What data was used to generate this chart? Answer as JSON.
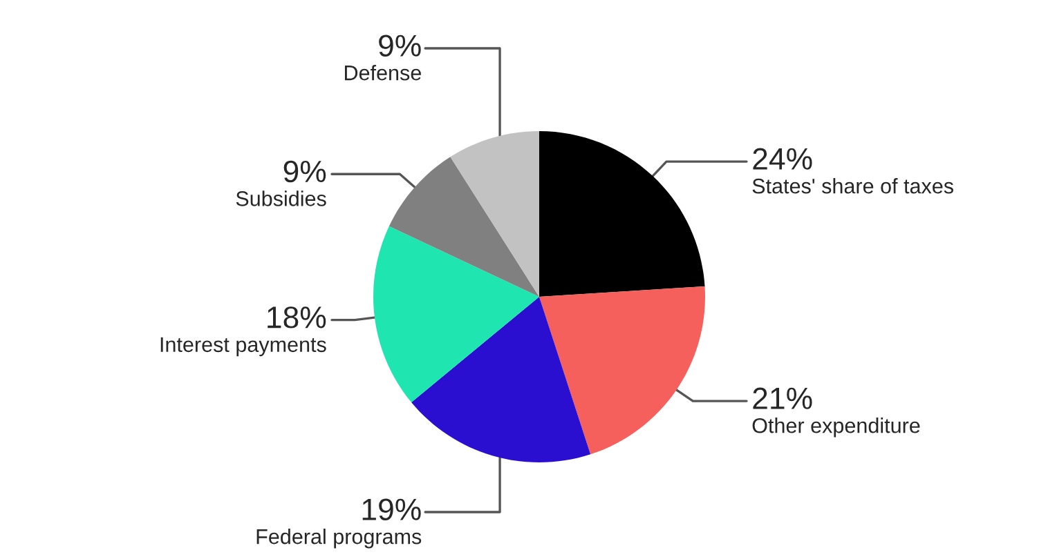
{
  "chart_data": {
    "type": "pie",
    "categories": [
      "States' share of taxes",
      "Other expenditure",
      "Federal programs",
      "Interest payments",
      "Subsidies",
      "Defense"
    ],
    "values": [
      24,
      21,
      19,
      18,
      9,
      9
    ],
    "value_labels": [
      "24%",
      "21%",
      "19%",
      "18%",
      "9%",
      "9%"
    ],
    "colors": [
      "#000000",
      "#f5605c",
      "#2b0fd0",
      "#1fe6b0",
      "#808080",
      "#c2c2c2"
    ],
    "legend": false
  }
}
